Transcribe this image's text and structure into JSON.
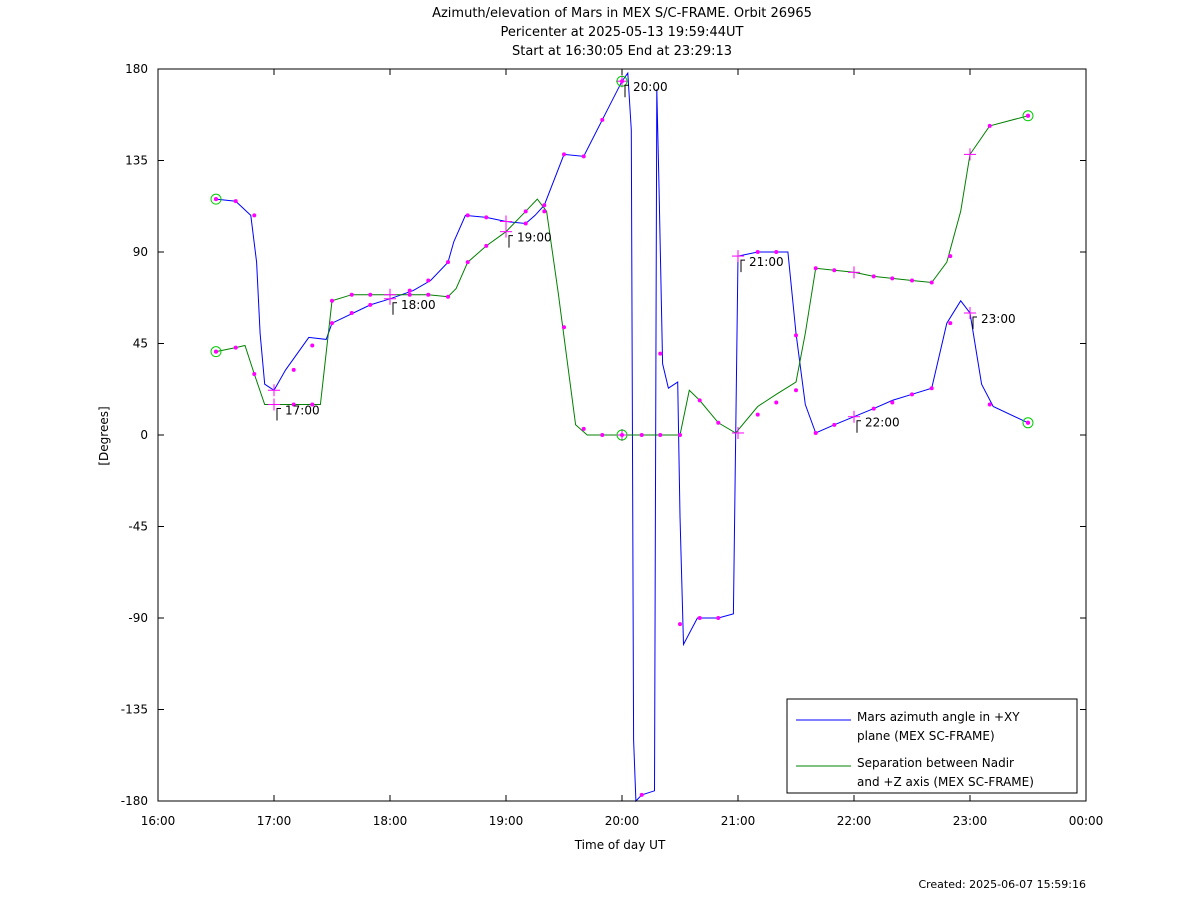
{
  "chart_data": {
    "type": "line",
    "title": "Azimuth/elevation of Mars in MEX S/C-FRAME.  Orbit 26965",
    "subtitle_lines": [
      "Pericenter at 2025-05-13 19:59:44UT",
      "Start at 16:30:05 End at 23:29:13"
    ],
    "xlabel": "Time of day UT",
    "ylabel": "[Degrees]",
    "xlim": [
      16.0,
      24.0
    ],
    "ylim": [
      -180,
      180
    ],
    "x_ticks": [
      "16:00",
      "17:00",
      "18:00",
      "19:00",
      "20:00",
      "21:00",
      "22:00",
      "23:00",
      "00:00"
    ],
    "y_ticks": [
      "180",
      "135",
      "90",
      "45",
      "0",
      "-45",
      "-90",
      "-135",
      "-180"
    ],
    "grid": false,
    "legend_position": "bottom-right",
    "series": [
      {
        "name": "Mars azimuth angle in +XY plane (MEX SC-FRAME)",
        "color": "#0000ff",
        "x": [
          16.5,
          16.67,
          16.8,
          16.85,
          16.88,
          16.92,
          17.0,
          17.1,
          17.3,
          17.45,
          17.5,
          17.83,
          18.0,
          18.2,
          18.35,
          18.5,
          18.55,
          18.65,
          18.83,
          19.0,
          19.17,
          19.25,
          19.33,
          19.5,
          19.67,
          19.83,
          20.0,
          20.05,
          20.08,
          20.1,
          20.12,
          20.17,
          20.28,
          20.3,
          20.32,
          20.35,
          20.4,
          20.48,
          20.5,
          20.53,
          20.65,
          20.83,
          20.96,
          20.98,
          21.0,
          21.17,
          21.43,
          21.5,
          21.58,
          21.67,
          21.83,
          22.0,
          22.17,
          22.33,
          22.5,
          22.67,
          22.8,
          22.92,
          23.0,
          23.1,
          23.2,
          23.5
        ],
        "values": [
          116,
          115,
          108,
          85,
          50,
          25,
          22,
          32,
          48,
          47,
          55,
          64,
          67,
          71,
          76,
          85,
          95,
          108,
          107,
          105,
          104,
          108,
          113,
          138,
          137,
          155,
          174,
          178,
          150,
          -150,
          -180,
          -177,
          -175,
          170,
          120,
          35,
          23,
          26,
          -40,
          -103,
          -90,
          -90,
          -88,
          0,
          88,
          90,
          90,
          50,
          15,
          1,
          5,
          9,
          13,
          17,
          20,
          23,
          55,
          66,
          60,
          25,
          14,
          6
        ]
      },
      {
        "name": "Separation between Nadir and +Z axis (MEX SC-FRAME)",
        "color": "#008000",
        "x": [
          16.5,
          16.67,
          16.75,
          16.83,
          16.92,
          17.0,
          17.17,
          17.33,
          17.4,
          17.5,
          17.67,
          17.83,
          18.0,
          18.17,
          18.33,
          18.5,
          18.57,
          18.67,
          18.83,
          19.0,
          19.17,
          19.27,
          19.35,
          19.45,
          19.6,
          19.7,
          19.83,
          20.0,
          20.17,
          20.33,
          20.5,
          20.58,
          20.67,
          20.83,
          20.98,
          21.17,
          21.33,
          21.5,
          21.58,
          21.67,
          21.83,
          22.0,
          22.17,
          22.33,
          22.5,
          22.67,
          22.8,
          22.92,
          23.0,
          23.17,
          23.5
        ],
        "values": [
          41,
          43,
          44,
          30,
          15,
          15,
          15,
          15,
          15,
          66,
          69,
          69,
          69,
          69,
          69,
          68,
          72,
          85,
          93,
          100,
          110,
          116,
          110,
          70,
          5,
          0,
          0,
          0,
          0,
          0,
          0,
          22,
          17,
          6,
          1,
          14,
          20,
          26,
          50,
          82,
          81,
          80,
          78,
          77,
          76,
          75,
          85,
          110,
          138,
          152,
          157
        ]
      }
    ],
    "marker_color": "#ff00ff",
    "dots": {
      "x": [
        16.5,
        16.67,
        16.83,
        16.5,
        16.67,
        16.83,
        17.17,
        17.33,
        17.5,
        17.67,
        17.83,
        18.17,
        18.33,
        18.5,
        18.67,
        18.83,
        19.17,
        19.33,
        19.5,
        19.67,
        19.83,
        20.17,
        20.33,
        20.5,
        20.67,
        20.83,
        21.17,
        21.33,
        21.5,
        21.67,
        21.83,
        22.17,
        22.33,
        22.5,
        22.67,
        22.83,
        23.17,
        23.5,
        17.17,
        17.33,
        17.5,
        17.67,
        17.83,
        18.17,
        18.33,
        18.5,
        18.67,
        18.83,
        19.17,
        19.33,
        19.5,
        19.67,
        19.83,
        20.17,
        20.33,
        20.5,
        20.67,
        20.83,
        21.17,
        21.33,
        21.5,
        21.67,
        21.83,
        22.17,
        22.33,
        22.5,
        22.67,
        22.83,
        23.17,
        23.5
      ],
      "values": [
        116,
        115,
        108,
        41,
        43,
        30,
        32,
        44,
        55,
        60,
        64,
        71,
        76,
        85,
        108,
        107,
        104,
        113,
        138,
        137,
        155,
        -177,
        40,
        -93,
        -90,
        -90,
        90,
        90,
        49,
        1,
        5,
        13,
        16,
        20,
        23,
        55,
        15,
        6,
        15,
        15,
        66,
        69,
        69,
        69,
        69,
        68,
        85,
        93,
        110,
        110,
        53,
        3,
        0,
        0,
        0,
        0,
        17,
        6,
        10,
        16,
        22,
        82,
        81,
        78,
        77,
        76,
        75,
        88,
        152,
        157
      ]
    },
    "hour_markers": [
      {
        "label": "17:00",
        "x": 17.0,
        "az": 22,
        "sep": 15
      },
      {
        "label": "18:00",
        "x": 18.0,
        "az": 67,
        "sep": 69
      },
      {
        "label": "19:00",
        "x": 19.0,
        "az": 105,
        "sep": 100
      },
      {
        "label": "20:00",
        "x": 20.0,
        "az": 174,
        "sep": 0
      },
      {
        "label": "21:00",
        "x": 21.0,
        "az": 88,
        "sep": 1
      },
      {
        "label": "22:00",
        "x": 22.0,
        "az": 9,
        "sep": 80
      },
      {
        "label": "23:00",
        "x": 23.0,
        "az": 60,
        "sep": 138
      }
    ],
    "annotations": [
      {
        "text": "17:00",
        "x": 17.0,
        "y": 15
      },
      {
        "text": "18:00",
        "x": 18.0,
        "y": 67
      },
      {
        "text": "19:00",
        "x": 19.0,
        "y": 100
      },
      {
        "text": "20:00",
        "x": 20.0,
        "y": 174
      },
      {
        "text": "21:00",
        "x": 21.0,
        "y": 88
      },
      {
        "text": "22:00",
        "x": 22.0,
        "y": 9
      },
      {
        "text": "23:00",
        "x": 23.0,
        "y": 60
      }
    ],
    "start_end_circle_color": "#00cc00",
    "start_end_circles": [
      {
        "x": 16.5,
        "y": 116
      },
      {
        "x": 16.5,
        "y": 41
      },
      {
        "x": 23.5,
        "y": 6
      },
      {
        "x": 23.5,
        "y": 157
      },
      {
        "x": 20.0,
        "y": 174
      },
      {
        "x": 20.0,
        "y": 0
      }
    ],
    "legend": [
      {
        "color": "#0000ff",
        "line1": "Mars azimuth angle in +XY",
        "line2": "plane (MEX SC-FRAME)"
      },
      {
        "color": "#008000",
        "line1": "Separation between Nadir",
        "line2": "and +Z axis (MEX SC-FRAME)"
      }
    ]
  },
  "footer": {
    "created": "Created: 2025-06-07 15:59:16"
  }
}
